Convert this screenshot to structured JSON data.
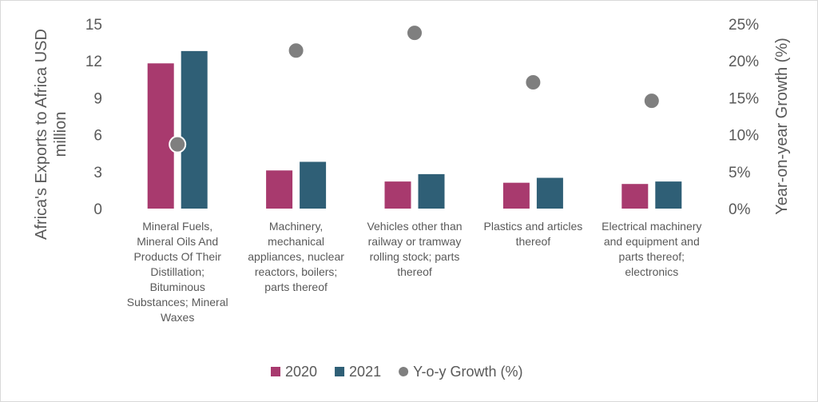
{
  "chart_data": {
    "type": "bar",
    "categories": [
      [
        "Mineral Fuels,",
        "Mineral Oils And",
        "Products Of Their",
        "Distillation;",
        "Bituminous",
        "Substances; Mineral",
        "Waxes"
      ],
      [
        "Machinery,",
        "mechanical",
        "appliances, nuclear",
        "reactors, boilers;",
        "parts thereof"
      ],
      [
        "Vehicles other than",
        "railway or tramway",
        "rolling stock; parts",
        "thereof"
      ],
      [
        "Plastics and articles",
        "thereof"
      ],
      [
        "Electrical machinery",
        "and equipment and",
        "parts thereof;",
        "electronics"
      ]
    ],
    "series": [
      {
        "name": "2020",
        "type": "bar",
        "axis": "left",
        "color": "#A83A6E",
        "values": [
          11.8,
          3.1,
          2.2,
          2.1,
          2.0
        ]
      },
      {
        "name": "2021",
        "type": "bar",
        "axis": "left",
        "color": "#2F5F76",
        "values": [
          12.8,
          3.8,
          2.8,
          2.5,
          2.2
        ]
      },
      {
        "name": "Y-o-y Growth (%)",
        "type": "scatter",
        "axis": "right",
        "color": "#7F7F7F",
        "values": [
          8.7,
          21.4,
          23.8,
          17.1,
          14.6
        ]
      }
    ],
    "ylabel": "Africa's Exports to Africa USD million",
    "ylabel_lines": [
      "Africa's Exports to Africa USD",
      "million"
    ],
    "y2label": "Year-on-year Growth (%)",
    "ylim": [
      0,
      15
    ],
    "yticks": [
      "0",
      "3",
      "6",
      "9",
      "12",
      "15"
    ],
    "y2lim": [
      0,
      25
    ],
    "y2ticks": [
      "0%",
      "5%",
      "10%",
      "15%",
      "20%",
      "25%"
    ],
    "grid": false,
    "legend_position": "bottom"
  }
}
